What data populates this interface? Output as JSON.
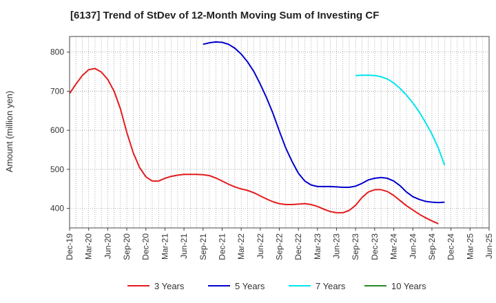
{
  "chart_data": {
    "type": "line",
    "title": "[6137]  Trend of StDev of 12-Month Moving Sum of Investing CF",
    "xlabel": "",
    "ylabel": "Amount (million yen)",
    "ylim": [
      350,
      840
    ],
    "yticks": [
      400,
      500,
      600,
      700,
      800
    ],
    "x_tick_labels": [
      "Dec-19",
      "Mar-20",
      "Jun-20",
      "Sep-20",
      "Dec-20",
      "Mar-21",
      "Jun-21",
      "Sep-21",
      "Dec-21",
      "Mar-22",
      "Jun-22",
      "Sep-22",
      "Dec-22",
      "Mar-23",
      "Jun-23",
      "Sep-23",
      "Dec-23",
      "Mar-24",
      "Jun-24",
      "Sep-24",
      "Dec-24",
      "Mar-25",
      "Jun-25"
    ],
    "x_months": [
      "2019-12",
      "2020-01",
      "2020-02",
      "2020-03",
      "2020-04",
      "2020-05",
      "2020-06",
      "2020-07",
      "2020-08",
      "2020-09",
      "2020-10",
      "2020-11",
      "2020-12",
      "2021-01",
      "2021-02",
      "2021-03",
      "2021-04",
      "2021-05",
      "2021-06",
      "2021-07",
      "2021-08",
      "2021-09",
      "2021-10",
      "2021-11",
      "2021-12",
      "2022-01",
      "2022-02",
      "2022-03",
      "2022-04",
      "2022-05",
      "2022-06",
      "2022-07",
      "2022-08",
      "2022-09",
      "2022-10",
      "2022-11",
      "2022-12",
      "2023-01",
      "2023-02",
      "2023-03",
      "2023-04",
      "2023-05",
      "2023-06",
      "2023-07",
      "2023-08",
      "2023-09",
      "2023-10",
      "2023-11",
      "2023-12",
      "2024-01",
      "2024-02",
      "2024-03",
      "2024-04",
      "2024-05",
      "2024-06",
      "2024-07",
      "2024-08",
      "2024-09",
      "2024-10",
      "2024-11",
      "2024-12",
      "2025-01",
      "2025-02",
      "2025-03",
      "2025-04",
      "2025-05",
      "2025-06"
    ],
    "grid": true,
    "legend_position": "bottom",
    "series": [
      {
        "name": "3 Years",
        "color": "#e41a1c",
        "start": "2019-12",
        "values": [
          694,
          718,
          740,
          755,
          758,
          749,
          730,
          700,
          655,
          595,
          543,
          505,
          481,
          470,
          470,
          477,
          482,
          485,
          487,
          487,
          487,
          486,
          484,
          478,
          470,
          462,
          455,
          450,
          446,
          440,
          432,
          424,
          417,
          412,
          410,
          410,
          411,
          412,
          410,
          405,
          398,
          392,
          389,
          389,
          395,
          408,
          428,
          442,
          448,
          448,
          443,
          433,
          420,
          407,
          396,
          385,
          376,
          368,
          361
        ]
      },
      {
        "name": "5 Years",
        "color": "#0000cc",
        "start": "2021-09",
        "values": [
          820,
          824,
          826,
          825,
          820,
          810,
          795,
          775,
          750,
          718,
          683,
          643,
          598,
          555,
          520,
          490,
          470,
          460,
          456,
          456,
          456,
          455,
          454,
          454,
          457,
          464,
          473,
          477,
          479,
          477,
          470,
          458,
          442,
          430,
          423,
          418,
          416,
          415,
          416
        ]
      },
      {
        "name": "7 Years",
        "color": "#00e5ee",
        "start": "2023-09",
        "values": [
          740,
          741,
          741,
          740,
          737,
          731,
          721,
          707,
          690,
          670,
          647,
          620,
          590,
          555,
          510
        ]
      },
      {
        "name": "10 Years",
        "color": "#228b22",
        "start": "2024-09",
        "values": []
      }
    ]
  }
}
